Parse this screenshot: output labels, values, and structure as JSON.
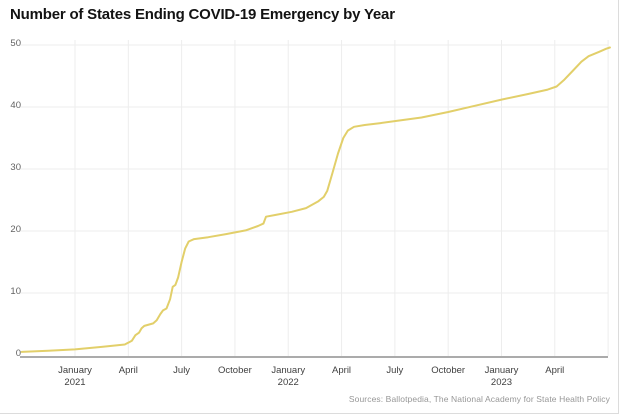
{
  "title": "Number of States Ending COVID-19 Emergency by Year",
  "source_note": "Sources: Ballotpedia, The National Academy for State Health Policy",
  "chart_data": {
    "type": "line",
    "title": "Number of States Ending COVID-19 Emergency by Year",
    "xlabel": "",
    "ylabel": "",
    "ylim": [
      0,
      50
    ],
    "y_ticks": [
      0,
      10,
      20,
      30,
      40,
      50
    ],
    "x_ticks": [
      {
        "m": 0,
        "label": "January",
        "year": "2021"
      },
      {
        "m": 3,
        "label": "April"
      },
      {
        "m": 6,
        "label": "July"
      },
      {
        "m": 9,
        "label": "October"
      },
      {
        "m": 12,
        "label": "January",
        "year": "2022"
      },
      {
        "m": 15,
        "label": "April"
      },
      {
        "m": 18,
        "label": "July"
      },
      {
        "m": 21,
        "label": "October"
      },
      {
        "m": 24,
        "label": "January",
        "year": "2023"
      },
      {
        "m": 27,
        "label": "April"
      },
      {
        "m": 30,
        "label": ""
      }
    ],
    "xlim_months": [
      -3.2,
      30.3
    ],
    "grid": true,
    "legend": "none",
    "line_color": "#e2cf6a",
    "grid_color": "#ededed",
    "axis_color": "#8f8f8f",
    "y_label_color": "#636363",
    "x_label_color": "#3f3f3f",
    "points": [
      [
        -3.0,
        0.5
      ],
      [
        -1.5,
        0.7
      ],
      [
        0,
        0.9
      ],
      [
        1.5,
        1.3
      ],
      [
        2.8,
        1.7
      ],
      [
        3.2,
        2.3
      ],
      [
        3.4,
        3.2
      ],
      [
        3.6,
        3.6
      ],
      [
        3.75,
        4.3
      ],
      [
        3.9,
        4.7
      ],
      [
        4.4,
        5.1
      ],
      [
        4.6,
        5.6
      ],
      [
        4.8,
        6.6
      ],
      [
        4.95,
        7.2
      ],
      [
        5.15,
        7.5
      ],
      [
        5.35,
        9.0
      ],
      [
        5.5,
        11.0
      ],
      [
        5.65,
        11.3
      ],
      [
        5.8,
        12.5
      ],
      [
        6.0,
        15.0
      ],
      [
        6.2,
        17.2
      ],
      [
        6.4,
        18.3
      ],
      [
        6.7,
        18.7
      ],
      [
        7.5,
        19.0
      ],
      [
        8.5,
        19.5
      ],
      [
        9.6,
        20.1
      ],
      [
        10.3,
        20.8
      ],
      [
        10.6,
        21.2
      ],
      [
        10.75,
        22.3
      ],
      [
        11.3,
        22.6
      ],
      [
        12.2,
        23.1
      ],
      [
        13.0,
        23.7
      ],
      [
        13.7,
        24.8
      ],
      [
        14.0,
        25.5
      ],
      [
        14.2,
        26.5
      ],
      [
        14.5,
        29.5
      ],
      [
        14.8,
        32.5
      ],
      [
        15.1,
        35.0
      ],
      [
        15.35,
        36.2
      ],
      [
        15.7,
        36.8
      ],
      [
        16.3,
        37.1
      ],
      [
        17.2,
        37.4
      ],
      [
        18.2,
        37.8
      ],
      [
        19.5,
        38.3
      ],
      [
        21.0,
        39.2
      ],
      [
        22.5,
        40.2
      ],
      [
        24.0,
        41.2
      ],
      [
        25.5,
        42.1
      ],
      [
        26.6,
        42.8
      ],
      [
        27.1,
        43.3
      ],
      [
        27.5,
        44.3
      ],
      [
        28.0,
        45.8
      ],
      [
        28.5,
        47.3
      ],
      [
        28.9,
        48.2
      ],
      [
        29.5,
        48.9
      ],
      [
        29.9,
        49.4
      ],
      [
        30.1,
        49.6
      ]
    ]
  }
}
